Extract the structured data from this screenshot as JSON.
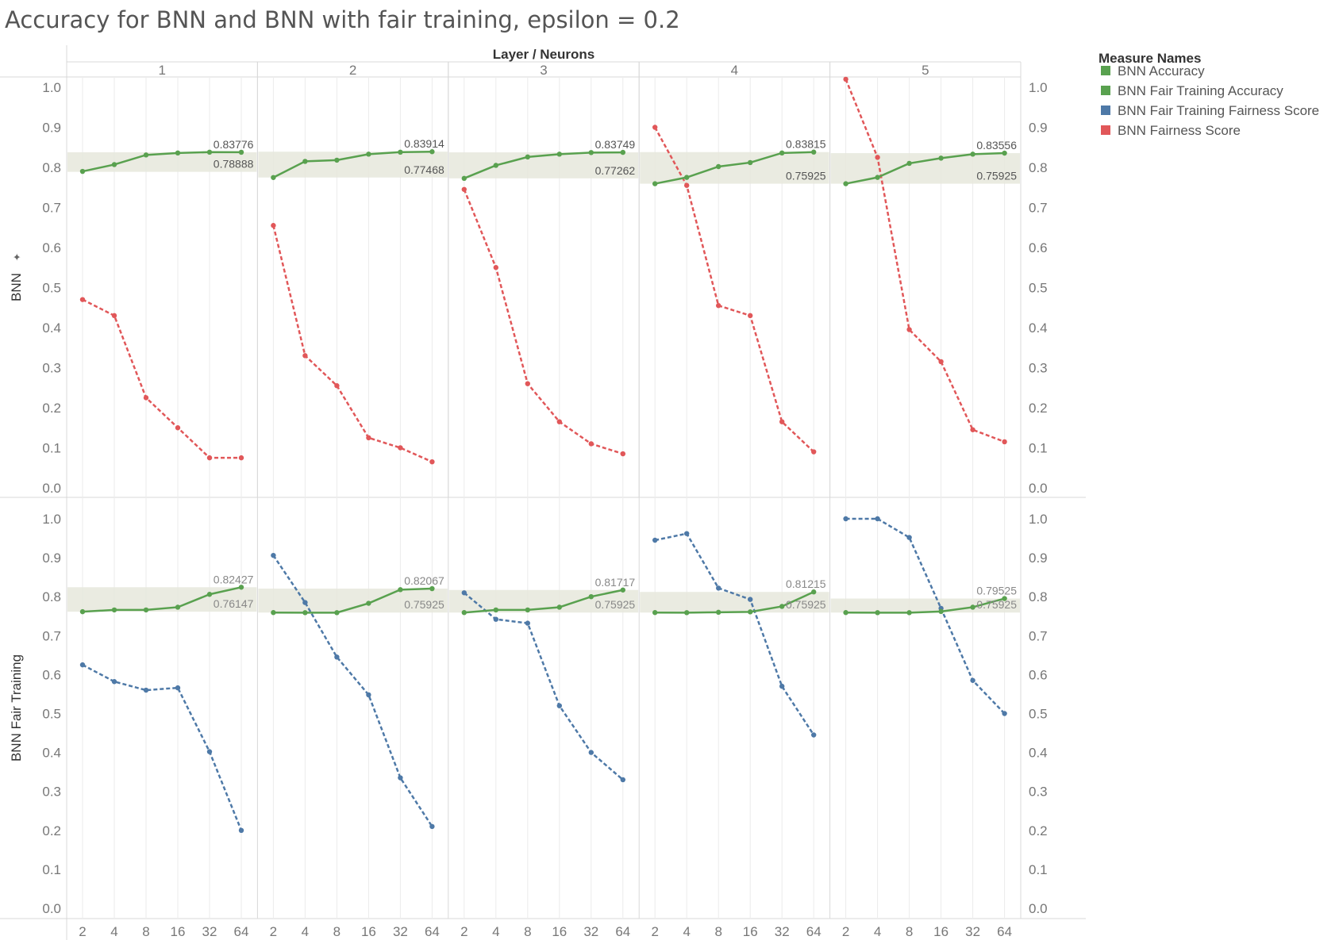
{
  "chart_data": {
    "type": "line",
    "title": "Accuracy for BNN and BNN with fair training, epsilon = 0.2",
    "column_header_title": "Layer / Neurons",
    "layers": [
      "1",
      "2",
      "3",
      "4",
      "5"
    ],
    "x_categories": [
      "2",
      "4",
      "8",
      "16",
      "32",
      "64"
    ],
    "y_ticks": [
      "1.0",
      "0.9",
      "0.8",
      "0.7",
      "0.6",
      "0.5",
      "0.4",
      "0.3",
      "0.2",
      "0.1",
      "0.0"
    ],
    "ylim": [
      0,
      1
    ],
    "grid": true,
    "legend": {
      "title": "Measure Names",
      "placement": "right",
      "items": [
        {
          "label": "BNN Accuracy",
          "color": "#59a14f"
        },
        {
          "label": "BNN Fair Training Accuracy",
          "color": "#59a14f"
        },
        {
          "label": "BNN Fair Training Fairness Score",
          "color": "#4e79a7"
        },
        {
          "label": "BNN Fairness Score",
          "color": "#e15759"
        }
      ]
    },
    "rows": [
      {
        "label": "BNN",
        "panels": [
          {
            "accuracy": [
              0.79,
              0.807,
              0.831,
              0.836,
              0.838,
              0.83776
            ],
            "fairness": [
              0.47,
              0.43,
              0.225,
              0.15,
              0.075,
              0.075
            ],
            "band": [
              0.78888,
              0.83776
            ],
            "max_label": "0.83776",
            "min_label": "0.78888"
          },
          {
            "accuracy": [
              0.77468,
              0.815,
              0.818,
              0.833,
              0.838,
              0.83914
            ],
            "fairness": [
              0.655,
              0.33,
              0.255,
              0.125,
              0.1,
              0.065
            ],
            "band": [
              0.77468,
              0.83914
            ],
            "max_label": "0.83914",
            "min_label": "0.77468"
          },
          {
            "accuracy": [
              0.77262,
              0.805,
              0.826,
              0.833,
              0.837,
              0.83749
            ],
            "fairness": [
              0.745,
              0.55,
              0.26,
              0.165,
              0.11,
              0.085
            ],
            "band": [
              0.77262,
              0.83749
            ],
            "max_label": "0.83749",
            "min_label": "0.77262"
          },
          {
            "accuracy": [
              0.75925,
              0.775,
              0.802,
              0.812,
              0.836,
              0.83815
            ],
            "fairness": [
              0.9,
              0.755,
              0.455,
              0.43,
              0.165,
              0.09
            ],
            "band": [
              0.75925,
              0.83815
            ],
            "max_label": "0.83815",
            "min_label": "0.75925"
          },
          {
            "accuracy": [
              0.75925,
              0.775,
              0.81,
              0.823,
              0.833,
              0.83556
            ],
            "fairness": [
              1.02,
              0.825,
              0.395,
              0.315,
              0.145,
              0.115
            ],
            "band": [
              0.75925,
              0.83556
            ],
            "max_label": "0.83556",
            "min_label": "0.75925"
          }
        ]
      },
      {
        "label": "BNN Fair Training",
        "panels": [
          {
            "accuracy": [
              0.76147,
              0.766,
              0.766,
              0.773,
              0.806,
              0.82427
            ],
            "fairness": [
              0.625,
              0.582,
              0.56,
              0.566,
              0.402,
              0.2
            ],
            "band": [
              0.76147,
              0.82427
            ],
            "max_label": "0.82427",
            "min_label": "0.76147"
          },
          {
            "accuracy": [
              0.75925,
              0.759,
              0.759,
              0.783,
              0.818,
              0.82067
            ],
            "fairness": [
              0.906,
              0.785,
              0.645,
              0.548,
              0.335,
              0.21
            ],
            "band": [
              0.75925,
              0.82067
            ],
            "max_label": "0.82067",
            "min_label": "0.75925"
          },
          {
            "accuracy": [
              0.75925,
              0.766,
              0.766,
              0.773,
              0.8,
              0.81717
            ],
            "fairness": [
              0.81,
              0.742,
              0.732,
              0.52,
              0.4,
              0.33
            ],
            "band": [
              0.75925,
              0.81717
            ],
            "max_label": "0.81717",
            "min_label": "0.75925"
          },
          {
            "accuracy": [
              0.75925,
              0.759,
              0.76,
              0.761,
              0.775,
              0.81215
            ],
            "fairness": [
              0.945,
              0.962,
              0.822,
              0.793,
              0.57,
              0.445
            ],
            "band": [
              0.75925,
              0.81215
            ],
            "max_label": "0.81215",
            "min_label": "0.75925"
          },
          {
            "accuracy": [
              0.75925,
              0.759,
              0.759,
              0.762,
              0.773,
              0.79525
            ],
            "fairness": [
              1.0,
              1.0,
              0.952,
              0.77,
              0.585,
              0.5
            ],
            "band": [
              0.75925,
              0.79525
            ],
            "max_label": "0.79525",
            "min_label": "0.75925"
          }
        ]
      }
    ]
  }
}
